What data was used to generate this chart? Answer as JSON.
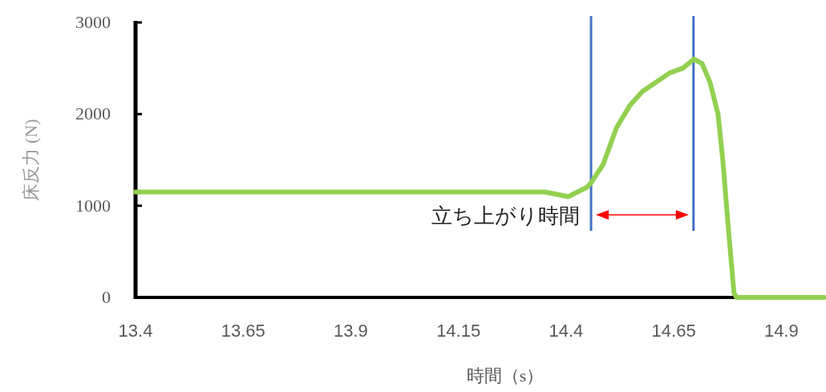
{
  "chart_data": {
    "type": "line",
    "xlabel": "時間（s）",
    "ylabel": "床反力 (N)",
    "x": [
      13.4,
      13.5,
      13.6,
      13.7,
      13.8,
      13.9,
      14.0,
      14.1,
      14.2,
      14.3,
      14.35,
      14.405,
      14.448,
      14.458,
      14.486,
      14.517,
      14.549,
      14.578,
      14.61,
      14.641,
      14.671,
      14.697,
      14.716,
      14.734,
      14.753,
      14.764,
      14.777,
      14.79,
      14.796,
      14.9,
      15.0
    ],
    "series": [
      {
        "color": "#92d050",
        "values": [
          1150,
          1150,
          1150,
          1150,
          1150,
          1150,
          1150,
          1150,
          1150,
          1150,
          1150,
          1100,
          1200,
          1250,
          1450,
          1850,
          2100,
          2250,
          2350,
          2450,
          2500,
          2600,
          2550,
          2350,
          2000,
          1500,
          750,
          50,
          0,
          0,
          0
        ]
      }
    ],
    "xlim": [
      13.4,
      15.0
    ],
    "xticks": [
      13.4,
      13.65,
      13.9,
      14.15,
      14.4,
      14.65,
      14.9
    ],
    "ylim": [
      0,
      3000
    ],
    "yticks": [
      0,
      1000,
      2000,
      3000
    ],
    "ref_lines": [
      {
        "axis": "x",
        "value": 14.458,
        "color": "#4472c4"
      },
      {
        "axis": "x",
        "value": 14.696,
        "color": "#4472c4"
      }
    ],
    "annotations": [
      {
        "text": "立ち上がり時間",
        "x": 14.458,
        "y": 900
      }
    ],
    "grid": false
  }
}
